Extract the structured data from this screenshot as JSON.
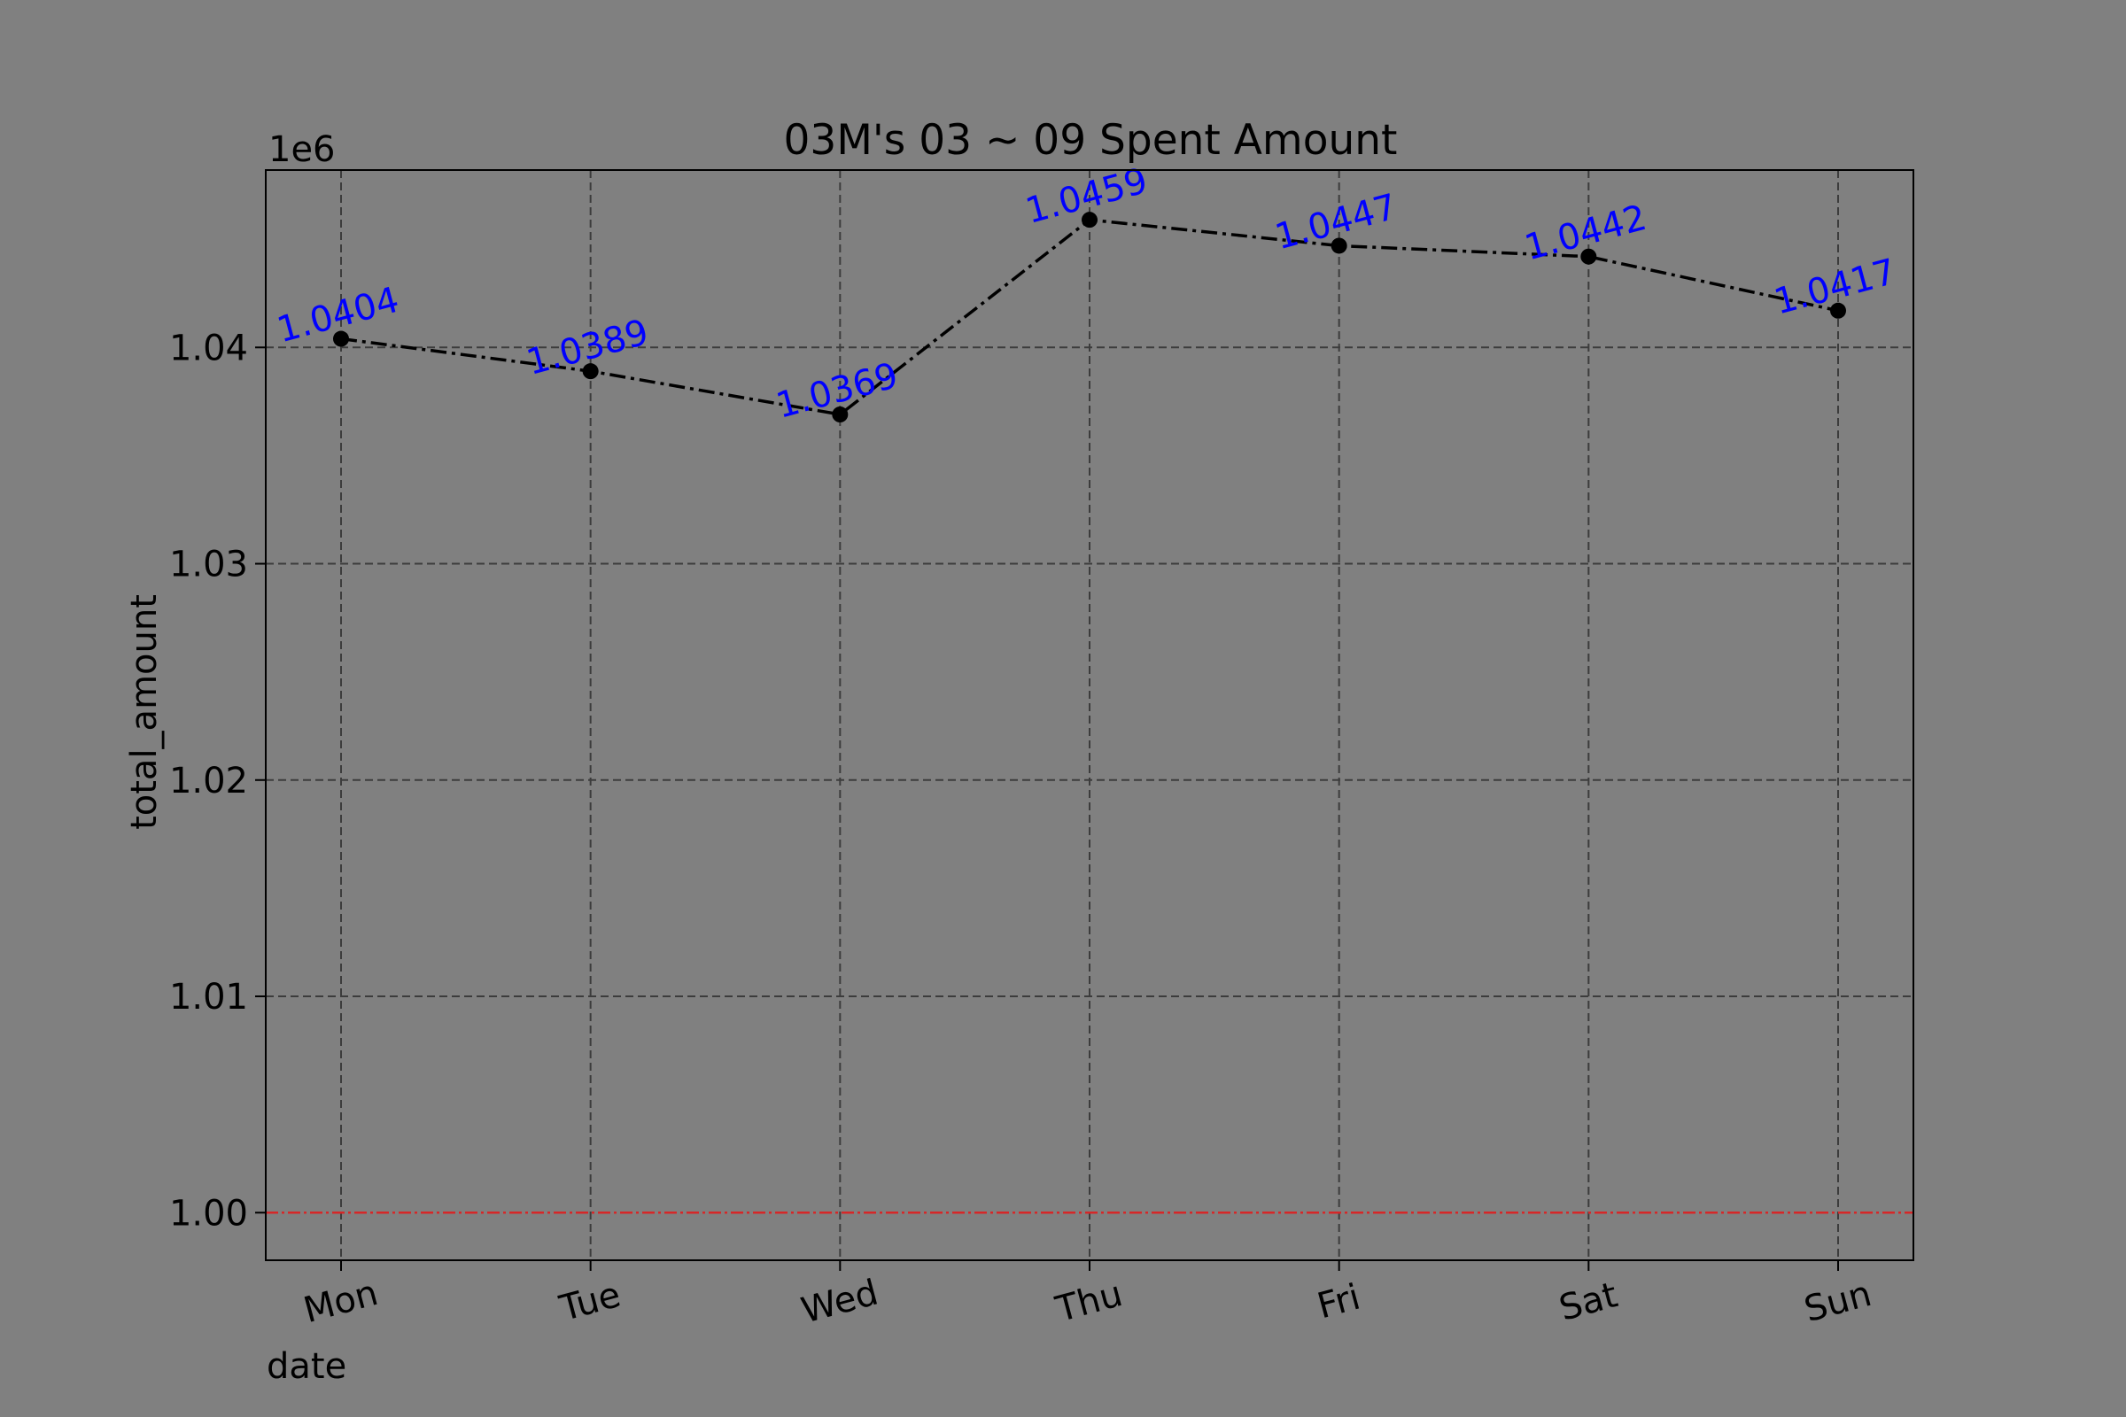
{
  "chart_data": {
    "type": "line",
    "title": "03M's 03 ~ 09 Spent Amount",
    "xlabel": "date",
    "ylabel": "total_amount",
    "offset_label": "1e6",
    "categories": [
      "Mon",
      "Tue",
      "Wed",
      "Thu",
      "Fri",
      "Sat",
      "Sun"
    ],
    "series": [
      {
        "values": [
          1040400,
          1038900,
          1036900,
          1045900,
          1044700,
          1044200,
          1041700
        ]
      }
    ],
    "data_labels": [
      "1.0404",
      "1.0389",
      "1.0369",
      "1.0459",
      "1.0447",
      "1.0442",
      "1.0417"
    ],
    "yticks": [
      1.0,
      1.01,
      1.02,
      1.03,
      1.04
    ],
    "ytick_labels": [
      "1.00",
      "1.01",
      "1.02",
      "1.03",
      "1.04"
    ],
    "ylim": [
      997800,
      1048200
    ],
    "reference_line": 1000000,
    "grid": true,
    "colors": {
      "background": "#808080",
      "line": "#000000",
      "grid": "#3c3c3c",
      "reference_line": "#d62728",
      "data_label": "#0000ff"
    }
  }
}
